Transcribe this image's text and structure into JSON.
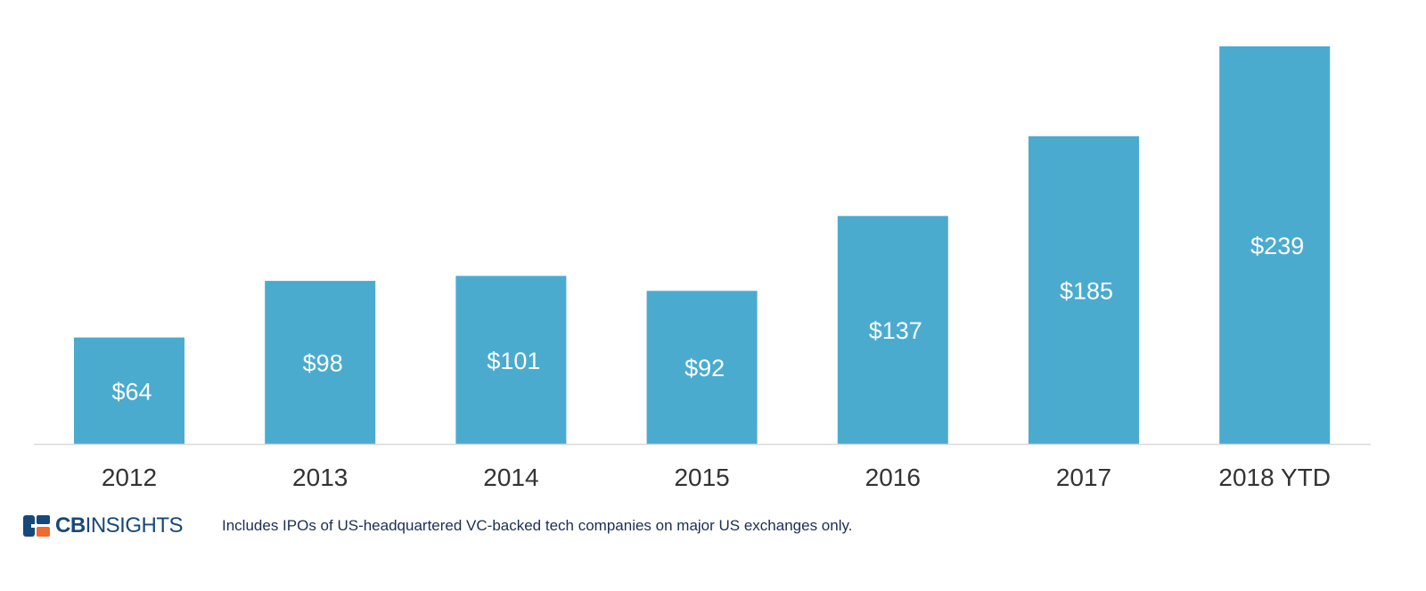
{
  "chart_data": {
    "type": "bar",
    "title": "",
    "xlabel": "",
    "ylabel": "",
    "categories": [
      "2012",
      "2013",
      "2014",
      "2015",
      "2016",
      "2017",
      "2018 YTD"
    ],
    "values": [
      64,
      98,
      101,
      92,
      137,
      185,
      239
    ],
    "value_labels": [
      "$64",
      "$98",
      "$101",
      "$92",
      "$137",
      "$185",
      "$239"
    ],
    "ylim": [
      0,
      239
    ],
    "grid": false,
    "legend": "none",
    "colors": {
      "bar": "#4aabcf",
      "baseline": "#d9d9d9",
      "value_label": "#ffffff",
      "tick_label": "#333333"
    }
  },
  "footer": {
    "brand_bold": "CB",
    "brand_regular": "INSIGHTS",
    "brand_color": "#16497a",
    "brand_accent": "#f26a2e",
    "note": "Includes IPOs of US-headquartered VC-backed tech companies on major US exchanges only."
  }
}
